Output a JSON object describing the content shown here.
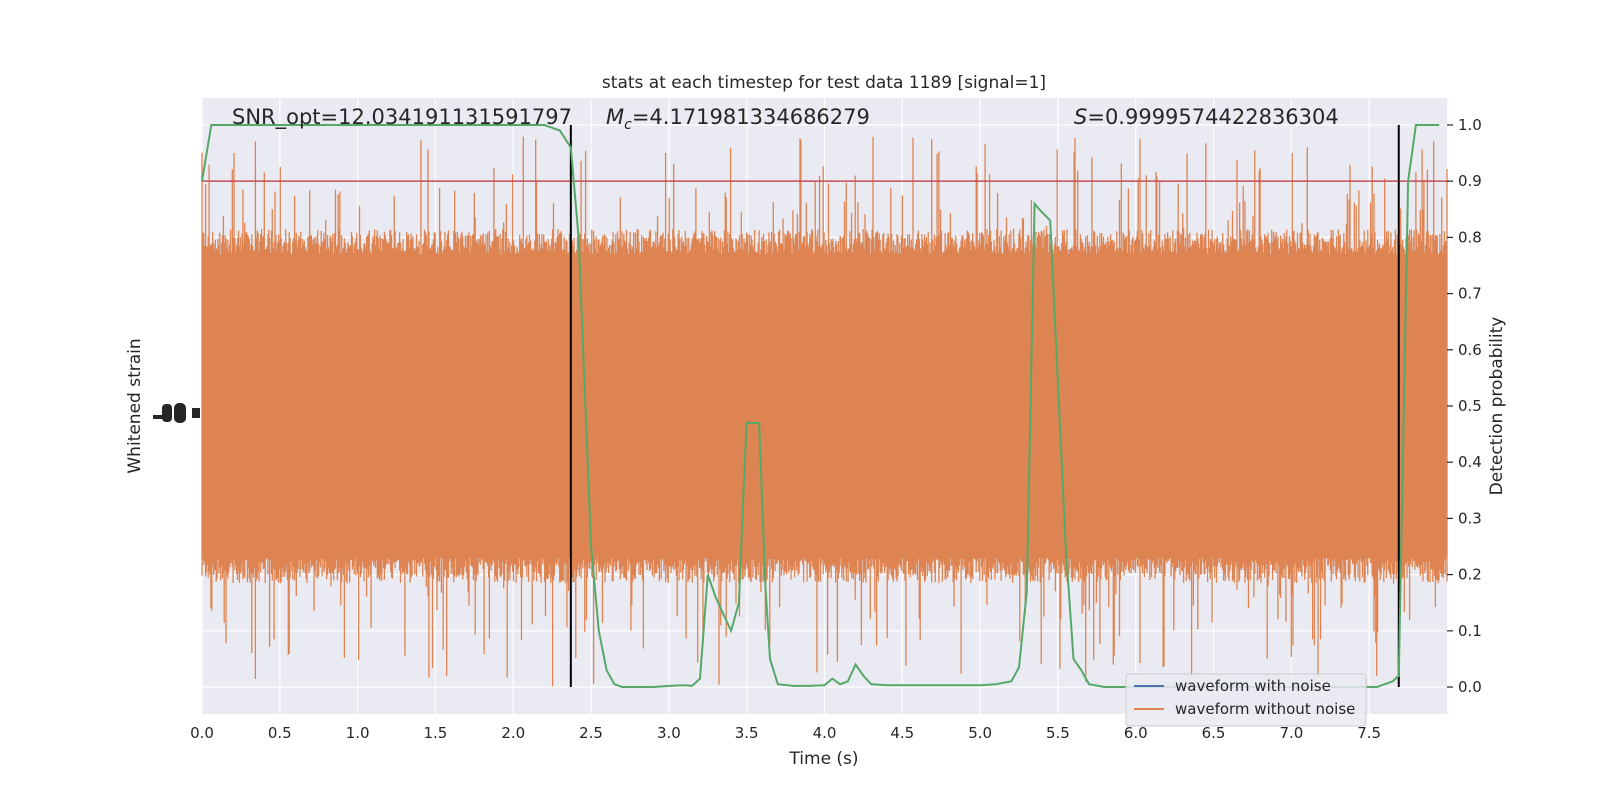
{
  "chart_data": {
    "type": "line",
    "title": "stats at each timestep for test data 1189 [signal=1]",
    "xlabel": "Time (s)",
    "ylabel_left": "Whitened strain",
    "ylabel_right": "Detection probability",
    "xlim": [
      0,
      8
    ],
    "x_ticks": [
      0.0,
      0.5,
      1.0,
      1.5,
      2.0,
      2.5,
      3.0,
      3.5,
      4.0,
      4.5,
      5.0,
      5.5,
      6.0,
      6.5,
      7.0,
      7.5
    ],
    "x_tick_labels": [
      "0.0",
      "0.5",
      "1.0",
      "1.5",
      "2.0",
      "2.5",
      "3.0",
      "3.5",
      "4.0",
      "4.5",
      "5.0",
      "5.5",
      "6.0",
      "6.5",
      "7.0",
      "7.5"
    ],
    "right_ylim": [
      -0.048,
      1.048
    ],
    "right_ticks": [
      0.0,
      0.1,
      0.2,
      0.3,
      0.4,
      0.5,
      0.6,
      0.7,
      0.8,
      0.9,
      1.0
    ],
    "right_tick_labels": [
      "0.0",
      "0.1",
      "0.2",
      "0.3",
      "0.4",
      "0.5",
      "0.6",
      "0.7",
      "0.8",
      "0.9",
      "1.0"
    ],
    "grid": true,
    "background": "#eaeaf2",
    "annotations": {
      "snr": "SNR_opt=12.034191131591797",
      "mc_symbol": "M",
      "mc_sub": "c",
      "mc_value": "=4.171981334686279",
      "s_symbol": "S",
      "s_value": "=0.9999574422836304"
    },
    "threshold": {
      "value": 0.9,
      "color": "#c44e52"
    },
    "vertical_lines": {
      "x": [
        2.37,
        7.69
      ],
      "color": "#000000"
    },
    "series": [
      {
        "name": "waveform with noise",
        "color": "#4c72b0",
        "axis": "left",
        "note": "hidden behind the noise-free series"
      },
      {
        "name": "waveform without noise",
        "color": "#dd8452",
        "axis": "left",
        "style": "dense noise",
        "envelope": {
          "upper_dense": 0.79,
          "lower_dense": 0.21,
          "upper_max": 0.98,
          "lower_min": 0.0
        }
      },
      {
        "name": "detection probability",
        "color": "#55a868",
        "axis": "right",
        "x": [
          0.0,
          0.06,
          0.2,
          0.4,
          0.6,
          0.8,
          1.0,
          1.2,
          1.4,
          1.6,
          1.8,
          2.0,
          2.2,
          2.3,
          2.37,
          2.42,
          2.5,
          2.55,
          2.6,
          2.65,
          2.7,
          2.8,
          2.9,
          3.0,
          3.1,
          3.15,
          3.2,
          3.25,
          3.3,
          3.35,
          3.4,
          3.45,
          3.48,
          3.5,
          3.55,
          3.58,
          3.62,
          3.65,
          3.7,
          3.8,
          3.9,
          4.0,
          4.05,
          4.1,
          4.15,
          4.2,
          4.25,
          4.3,
          4.4,
          4.6,
          4.8,
          5.0,
          5.1,
          5.2,
          5.25,
          5.3,
          5.35,
          5.38,
          5.45,
          5.55,
          5.6,
          5.65,
          5.7,
          5.8,
          5.9,
          6.0,
          6.2,
          6.4,
          6.6,
          6.8,
          7.0,
          7.2,
          7.4,
          7.55,
          7.65,
          7.69,
          7.75,
          7.8,
          7.85,
          7.9,
          7.95
        ],
        "y": [
          0.9,
          1.0,
          1.0,
          1.0,
          1.0,
          1.0,
          1.0,
          1.0,
          1.0,
          1.0,
          1.0,
          1.0,
          1.0,
          0.99,
          0.96,
          0.8,
          0.25,
          0.1,
          0.03,
          0.005,
          0.0,
          0.0,
          0.0,
          0.002,
          0.003,
          0.002,
          0.015,
          0.2,
          0.16,
          0.13,
          0.1,
          0.15,
          0.35,
          0.47,
          0.47,
          0.47,
          0.18,
          0.05,
          0.005,
          0.002,
          0.002,
          0.003,
          0.015,
          0.005,
          0.01,
          0.04,
          0.02,
          0.005,
          0.003,
          0.003,
          0.003,
          0.003,
          0.005,
          0.01,
          0.035,
          0.17,
          0.86,
          0.85,
          0.83,
          0.25,
          0.05,
          0.03,
          0.005,
          0.0,
          0.0,
          0.0,
          0.0,
          0.0,
          0.0,
          0.0,
          0.0,
          0.0,
          0.0,
          0.0,
          0.01,
          0.02,
          0.9,
          1.0,
          1.0,
          1.0,
          1.0
        ]
      }
    ],
    "legend": {
      "placement": "lower-right",
      "entries": [
        {
          "label": "waveform with noise",
          "color": "#4c72b0"
        },
        {
          "label": "waveform without noise",
          "color": "#dd8452"
        }
      ]
    }
  }
}
